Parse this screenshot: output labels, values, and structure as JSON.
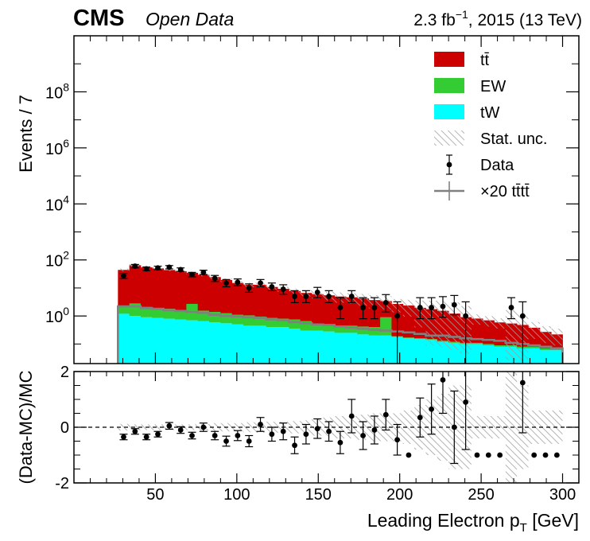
{
  "header": {
    "experiment": "CMS",
    "experiment_sub": "Open Data",
    "lumi_value": "2.3 fb",
    "lumi_exp": "−1",
    "lumi_rest": ", 2015 (13 TeV)"
  },
  "colors": {
    "ttbar": "#cc0000",
    "ew": "#33cc33",
    "tw": "#00ffff",
    "signal": "#808080",
    "data": "#000000",
    "unc": "#999999"
  },
  "chart_data": [
    {
      "type": "histogram",
      "panel": "main",
      "ylabel": "Events / 7",
      "yscale": "log",
      "ylim": [
        0.02,
        10000000000.0
      ],
      "xlim": [
        0,
        310
      ],
      "grid": false,
      "legend_position": "top-right",
      "y_tick_values": [
        1,
        100,
        10000,
        1000000,
        100000000
      ],
      "y_tick_labels": [
        {
          "base": "10",
          "exp": "0"
        },
        {
          "base": "10",
          "exp": "2"
        },
        {
          "base": "10",
          "exp": "4"
        },
        {
          "base": "10",
          "exp": "6"
        },
        {
          "base": "10",
          "exp": "8"
        }
      ],
      "legend": [
        {
          "key": "ttbar",
          "label": "tt̄"
        },
        {
          "key": "ew",
          "label": "EW"
        },
        {
          "key": "tw",
          "label": "tW"
        },
        {
          "key": "unc",
          "label": "Stat. unc."
        },
        {
          "key": "data",
          "label": "Data"
        },
        {
          "key": "signal",
          "label": "×20 tt̄tt̄"
        }
      ],
      "bin_edges": [
        27,
        34,
        41,
        48,
        55,
        62,
        69,
        76,
        83,
        90,
        97,
        104,
        111,
        118,
        125,
        132,
        139,
        146,
        153,
        160,
        167,
        174,
        181,
        188,
        195,
        202,
        209,
        216,
        223,
        230,
        237,
        244,
        251,
        258,
        265,
        272,
        279,
        286,
        293,
        300
      ],
      "series": [
        {
          "name": "tW",
          "values": [
            1.2,
            1.0,
            0.9,
            0.85,
            0.8,
            0.75,
            0.7,
            0.65,
            0.6,
            0.55,
            0.5,
            0.45,
            0.45,
            0.4,
            0.4,
            0.35,
            0.3,
            0.3,
            0.28,
            0.25,
            0.25,
            0.22,
            0.2,
            0.2,
            0.18,
            0.16,
            0.15,
            0.14,
            0.12,
            0.11,
            0.1,
            0.1,
            0.09,
            0.08,
            0.08,
            0.07,
            0.07,
            0.06,
            0.06
          ]
        },
        {
          "name": "EW",
          "values": [
            0.9,
            1.8,
            1.2,
            1.1,
            1.0,
            0.9,
            2.0,
            0.9,
            0.8,
            0.7,
            0.6,
            0.6,
            0.5,
            0.45,
            0.4,
            0.4,
            0.35,
            0.2,
            0.2,
            0.2,
            0.2,
            0.2,
            0.2,
            0.7,
            0.01,
            0.01,
            0.01,
            0.01,
            0.01,
            0.01,
            0.01,
            0.01,
            0.01,
            0.01,
            0.01,
            0.01,
            0.01,
            0.01,
            0.01
          ]
        },
        {
          "name": "tt̄",
          "values": [
            42,
            62,
            52,
            48,
            42,
            38,
            32,
            28,
            23,
            18,
            14,
            12,
            12,
            10,
            8.5,
            7,
            6,
            5.5,
            5,
            4.5,
            4.2,
            3.8,
            3.3,
            2.5,
            2.5,
            2.2,
            1.8,
            1.6,
            1.4,
            1.1,
            0.8,
            0.7,
            0.6,
            0.5,
            0.45,
            0.4,
            0.3,
            0.2,
            0.15
          ]
        },
        {
          "name": "×20 tt̄tt̄",
          "values": [
            2.2,
            2.2,
            1.9,
            1.8,
            1.6,
            1.5,
            1.4,
            1.3,
            1.1,
            1.0,
            0.95,
            0.9,
            0.85,
            0.75,
            0.7,
            0.6,
            0.55,
            0.5,
            0.48,
            0.42,
            0.38,
            0.35,
            0.32,
            0.3,
            0.28,
            0.26,
            0.23,
            0.2,
            0.2,
            0.18,
            0.16,
            0.15,
            0.14,
            0.13,
            0.11,
            0.1,
            0.09,
            0.08,
            0.07
          ]
        }
      ],
      "data_points": {
        "name": "Data",
        "x": [
          30.5,
          37.5,
          44.5,
          51.5,
          58.5,
          65.5,
          72.5,
          79.5,
          86.5,
          93.5,
          100.5,
          107.5,
          114.5,
          121.5,
          128.5,
          135.5,
          142.5,
          149.5,
          156.5,
          163.5,
          170.5,
          177.5,
          184.5,
          191.5,
          198.5,
          212.5,
          219.5,
          226.5,
          233.5,
          240.5,
          268.5,
          275.5
        ],
        "y": [
          27,
          60,
          48,
          52,
          55,
          45,
          30,
          36,
          22,
          15,
          16,
          10,
          15,
          11,
          9,
          5,
          5,
          7,
          5,
          2,
          5,
          2,
          2,
          3,
          1,
          2,
          2,
          2.2,
          2.5,
          1,
          2,
          1
        ],
        "yerr_low": [
          5,
          8,
          7,
          7,
          7,
          6,
          5,
          6,
          5,
          4,
          4,
          3,
          4,
          3,
          3,
          2,
          2,
          2.5,
          2,
          1.2,
          2,
          1.2,
          1.2,
          1.6,
          0.98,
          1.2,
          1.2,
          1.3,
          1.4,
          0.98,
          1.2,
          0.98
        ],
        "yerr_high": [
          6,
          9,
          8,
          8,
          8,
          7,
          6,
          7,
          6,
          5,
          5,
          4,
          5,
          4,
          4,
          3,
          3,
          3.5,
          3,
          2.5,
          3,
          2.5,
          2.5,
          2.8,
          2.2,
          2.5,
          2.5,
          2.7,
          2.9,
          2.2,
          2.5,
          2.2
        ]
      }
    },
    {
      "type": "scatter",
      "panel": "ratio",
      "xlabel": "Leading Electron p",
      "xlabel_sub": "T",
      "xlabel_unit": "[GeV]",
      "ylabel": "(Data-MC)/MC",
      "ylim": [
        -2,
        2
      ],
      "xlim": [
        0,
        310
      ],
      "x_ticks": [
        50,
        100,
        150,
        200,
        250,
        300
      ],
      "x_tick_labels": [
        "50",
        "100",
        "150",
        "200",
        "250",
        "300"
      ],
      "y_ticks": [
        -2,
        0,
        2
      ],
      "y_tick_labels": [
        "-2",
        "0",
        "2"
      ],
      "reference_line": 0,
      "unc_band": [
        0.12,
        0.1,
        0.1,
        0.1,
        0.1,
        0.1,
        0.1,
        0.12,
        0.15,
        0.15,
        0.15,
        0.18,
        0.2,
        0.2,
        0.2,
        0.22,
        0.25,
        0.3,
        0.35,
        0.4,
        0.4,
        0.45,
        0.5,
        0.5,
        0.5,
        0.6,
        0.8,
        1.0,
        1.2,
        1.5,
        1.5,
        0.4,
        0.4,
        0.4,
        2.0,
        1.5,
        0.6,
        0.6,
        0.6
      ],
      "x": [
        30.5,
        37.5,
        44.5,
        51.5,
        58.5,
        65.5,
        72.5,
        79.5,
        86.5,
        93.5,
        100.5,
        107.5,
        114.5,
        121.5,
        128.5,
        135.5,
        142.5,
        149.5,
        156.5,
        163.5,
        170.5,
        177.5,
        184.5,
        191.5,
        198.5,
        205.5,
        212.5,
        219.5,
        226.5,
        233.5,
        240.5,
        247.5,
        254.5,
        261.5,
        275.5,
        282.5,
        289.5,
        296.5
      ],
      "y": [
        -0.35,
        -0.15,
        -0.35,
        -0.25,
        0.05,
        -0.1,
        -0.3,
        0.0,
        -0.3,
        -0.5,
        -0.3,
        -0.5,
        0.1,
        -0.25,
        -0.15,
        -0.65,
        -0.25,
        -0.05,
        -0.15,
        -0.55,
        0.4,
        -0.3,
        -0.1,
        0.45,
        -0.45,
        -1.0,
        0.35,
        0.65,
        1.7,
        0.0,
        0.9,
        -1.0,
        -1.0,
        -1.0,
        1.6,
        -1.0,
        -1.0,
        -1.0
      ],
      "yerr": [
        0.1,
        0.1,
        0.1,
        0.1,
        0.12,
        0.12,
        0.12,
        0.15,
        0.15,
        0.18,
        0.18,
        0.2,
        0.25,
        0.25,
        0.3,
        0.3,
        0.35,
        0.35,
        0.35,
        0.4,
        0.6,
        0.5,
        0.5,
        0.55,
        0.55,
        0,
        0.7,
        0.9,
        1.2,
        1.3,
        1.7,
        0,
        0,
        0,
        1.8,
        0,
        0,
        0
      ]
    }
  ]
}
